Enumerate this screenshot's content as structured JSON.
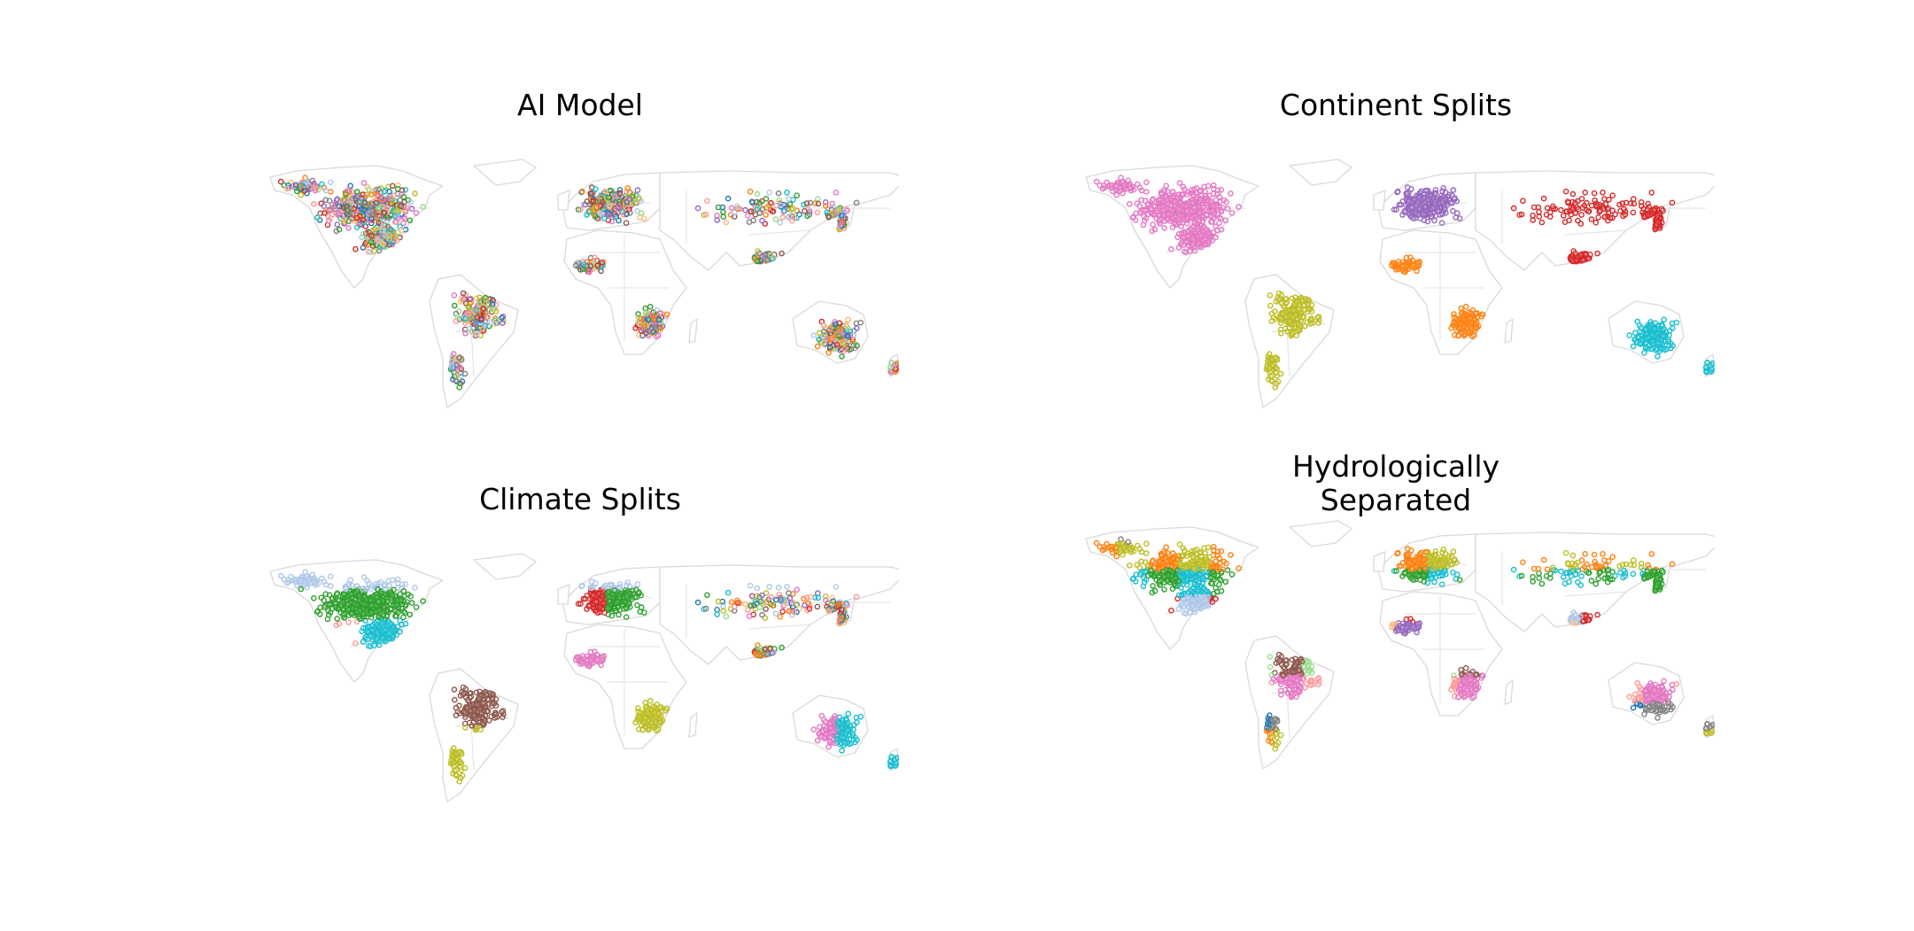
{
  "panels": [
    {
      "title": "AI Model",
      "scheme": "mixed"
    },
    {
      "title": "Continent Splits",
      "scheme": "continent"
    },
    {
      "title": "Climate Splits",
      "scheme": "climate"
    },
    {
      "title": "Hydrologically\nSeparated",
      "scheme": "hydro"
    }
  ],
  "palette": [
    "#1f77b4",
    "#ff7f0e",
    "#2ca02c",
    "#d62728",
    "#9467bd",
    "#8c564b",
    "#e377c2",
    "#7f7f7f",
    "#bcbd22",
    "#17becf",
    "#aec7e8",
    "#ffbb78",
    "#98df8a",
    "#ff9896"
  ],
  "colors": {
    "north_america": "#e377c2",
    "south_america": "#bcbd22",
    "europe": "#9467bd",
    "asia": "#d62728",
    "africa": "#ff7f0e",
    "oceania": "#17becf",
    "land_outline": "#d9d9d9"
  }
}
